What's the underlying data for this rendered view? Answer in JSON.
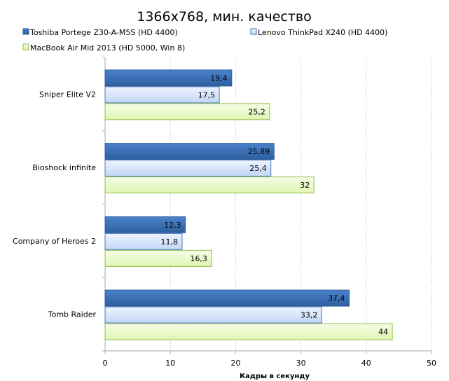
{
  "chart_data": {
    "type": "bar",
    "orientation": "horizontal",
    "title": "1366x768, мин. качество",
    "xlabel": "Кадры  в секунду",
    "ylabel": "",
    "xlim": [
      0,
      50
    ],
    "xticks": [
      0,
      10,
      20,
      30,
      40,
      50
    ],
    "grid": "vertical dotted",
    "legend_position": "top",
    "categories": [
      "Sniper Elite V2",
      "Bioshock infinite",
      "Company of Heroes 2",
      "Tomb Raider"
    ],
    "series": [
      {
        "name": "Toshiba Portege Z30-A-M5S (HD 4400)",
        "values": [
          19.4,
          25.89,
          12.3,
          37.4
        ],
        "labels": [
          "19,4",
          "25,89",
          "12,3",
          "37,4"
        ],
        "color": "#3a6fb8"
      },
      {
        "name": "Lenovo ThinkPad X240 (HD 4400)",
        "values": [
          17.5,
          25.4,
          11.8,
          33.2
        ],
        "labels": [
          "17,5",
          "25,4",
          "11,8",
          "33,2"
        ],
        "color": "#c9daf8"
      },
      {
        "name": "MacBook Air Mid 2013 (HD 5000, Win 8)",
        "values": [
          25.2,
          32,
          16.3,
          44
        ],
        "labels": [
          "25,2",
          "32",
          "16,3",
          "44"
        ],
        "color": "#e6f8c0"
      }
    ]
  }
}
